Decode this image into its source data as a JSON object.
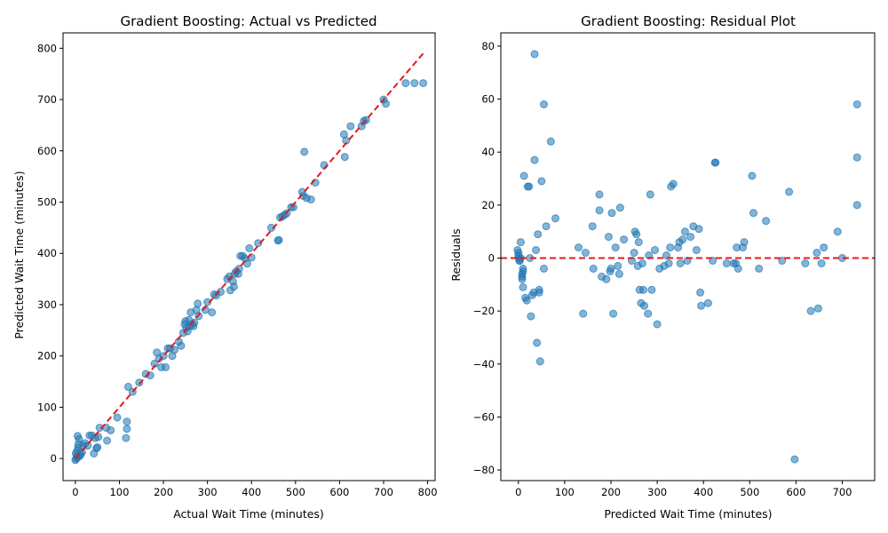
{
  "chart_data": [
    {
      "type": "scatter",
      "title": "Gradient Boosting: Actual vs Predicted",
      "xlabel": "Actual Wait Time (minutes)",
      "ylabel": "Predicted Wait Time (minutes)",
      "xlim": [
        -28,
        817
      ],
      "ylim": [
        -43,
        830
      ],
      "xticks": [
        0,
        100,
        200,
        300,
        400,
        500,
        600,
        700,
        800
      ],
      "yticks": [
        0,
        100,
        200,
        300,
        400,
        500,
        600,
        700,
        800
      ],
      "reference_line": {
        "style": "dashed",
        "color": "#e31a1c",
        "from": [
          0,
          0
        ],
        "to": [
          790,
          790
        ]
      },
      "point_color": "#1f77b4",
      "points": [
        [
          0,
          -3
        ],
        [
          2,
          0
        ],
        [
          3,
          5
        ],
        [
          1,
          10
        ],
        [
          4,
          15
        ],
        [
          5,
          2
        ],
        [
          6,
          22
        ],
        [
          7,
          28
        ],
        [
          5,
          44
        ],
        [
          8,
          38
        ],
        [
          10,
          5
        ],
        [
          12,
          8
        ],
        [
          15,
          12
        ],
        [
          18,
          25
        ],
        [
          22,
          30
        ],
        [
          28,
          25
        ],
        [
          32,
          45
        ],
        [
          38,
          45
        ],
        [
          42,
          10
        ],
        [
          45,
          40
        ],
        [
          48,
          20
        ],
        [
          50,
          22
        ],
        [
          52,
          42
        ],
        [
          55,
          60
        ],
        [
          70,
          60
        ],
        [
          72,
          35
        ],
        [
          80,
          55
        ],
        [
          95,
          80
        ],
        [
          115,
          40
        ],
        [
          117,
          58
        ],
        [
          117,
          72
        ],
        [
          120,
          140
        ],
        [
          130,
          130
        ],
        [
          145,
          148
        ],
        [
          160,
          165
        ],
        [
          170,
          162
        ],
        [
          180,
          185
        ],
        [
          185,
          207
        ],
        [
          190,
          195
        ],
        [
          195,
          178
        ],
        [
          200,
          200
        ],
        [
          205,
          178
        ],
        [
          210,
          215
        ],
        [
          215,
          215
        ],
        [
          220,
          200
        ],
        [
          225,
          212
        ],
        [
          235,
          228
        ],
        [
          240,
          220
        ],
        [
          245,
          245
        ],
        [
          248,
          262
        ],
        [
          250,
          268
        ],
        [
          252,
          255
        ],
        [
          255,
          248
        ],
        [
          258,
          270
        ],
        [
          260,
          258
        ],
        [
          262,
          285
        ],
        [
          265,
          262
        ],
        [
          268,
          258
        ],
        [
          270,
          265
        ],
        [
          275,
          290
        ],
        [
          278,
          302
        ],
        [
          280,
          278
        ],
        [
          295,
          290
        ],
        [
          300,
          305
        ],
        [
          310,
          285
        ],
        [
          315,
          320
        ],
        [
          320,
          318
        ],
        [
          330,
          325
        ],
        [
          345,
          350
        ],
        [
          350,
          355
        ],
        [
          352,
          328
        ],
        [
          358,
          345
        ],
        [
          360,
          335
        ],
        [
          362,
          360
        ],
        [
          365,
          365
        ],
        [
          370,
          360
        ],
        [
          372,
          370
        ],
        [
          375,
          395
        ],
        [
          380,
          395
        ],
        [
          385,
          390
        ],
        [
          390,
          380
        ],
        [
          395,
          410
        ],
        [
          400,
          392
        ],
        [
          415,
          420
        ],
        [
          445,
          450
        ],
        [
          460,
          425
        ],
        [
          462,
          426
        ],
        [
          465,
          470
        ],
        [
          470,
          472
        ],
        [
          475,
          475
        ],
        [
          480,
          478
        ],
        [
          490,
          490
        ],
        [
          495,
          490
        ],
        [
          515,
          520
        ],
        [
          518,
          512
        ],
        [
          520,
          598
        ],
        [
          525,
          508
        ],
        [
          535,
          505
        ],
        [
          545,
          538
        ],
        [
          565,
          572
        ],
        [
          610,
          632
        ],
        [
          612,
          588
        ],
        [
          615,
          620
        ],
        [
          625,
          648
        ],
        [
          650,
          648
        ],
        [
          655,
          658
        ],
        [
          660,
          660
        ],
        [
          700,
          700
        ],
        [
          705,
          692
        ],
        [
          750,
          732
        ],
        [
          770,
          732
        ],
        [
          790,
          732
        ]
      ]
    },
    {
      "type": "scatter",
      "title": "Gradient Boosting: Residual Plot",
      "xlabel": "Predicted Wait Time (minutes)",
      "ylabel": "Residuals",
      "xlim": [
        -38,
        770
      ],
      "ylim": [
        -84,
        85
      ],
      "xticks": [
        0,
        100,
        200,
        300,
        400,
        500,
        600,
        700
      ],
      "yticks": [
        -80,
        -60,
        -40,
        -20,
        0,
        20,
        40,
        60,
        80
      ],
      "reference_line": {
        "style": "dashed",
        "color": "#e31a1c",
        "y": 0
      },
      "point_color": "#1f77b4",
      "points": [
        [
          -2,
          3
        ],
        [
          0,
          2
        ],
        [
          0,
          1
        ],
        [
          1,
          0
        ],
        [
          2,
          -1
        ],
        [
          3,
          -1
        ],
        [
          5,
          6
        ],
        [
          5,
          0
        ],
        [
          8,
          -6
        ],
        [
          8,
          -7
        ],
        [
          8,
          -8
        ],
        [
          10,
          -4
        ],
        [
          10,
          -5
        ],
        [
          10,
          -11
        ],
        [
          12,
          31
        ],
        [
          15,
          -15
        ],
        [
          18,
          -16
        ],
        [
          20,
          27
        ],
        [
          23,
          27
        ],
        [
          25,
          0
        ],
        [
          27,
          -22
        ],
        [
          30,
          -14
        ],
        [
          33,
          -13
        ],
        [
          35,
          77
        ],
        [
          35,
          37
        ],
        [
          38,
          3
        ],
        [
          40,
          -32
        ],
        [
          42,
          9
        ],
        [
          45,
          -12
        ],
        [
          45,
          -13
        ],
        [
          47,
          -39
        ],
        [
          50,
          29
        ],
        [
          55,
          58
        ],
        [
          55,
          -4
        ],
        [
          60,
          12
        ],
        [
          70,
          44
        ],
        [
          80,
          15
        ],
        [
          130,
          4
        ],
        [
          140,
          -21
        ],
        [
          145,
          2
        ],
        [
          160,
          12
        ],
        [
          162,
          -4
        ],
        [
          175,
          24
        ],
        [
          175,
          18
        ],
        [
          180,
          -7
        ],
        [
          190,
          -8
        ],
        [
          195,
          8
        ],
        [
          198,
          -5
        ],
        [
          200,
          -4
        ],
        [
          202,
          17
        ],
        [
          205,
          -21
        ],
        [
          210,
          4
        ],
        [
          215,
          -3
        ],
        [
          218,
          -6
        ],
        [
          220,
          19
        ],
        [
          228,
          7
        ],
        [
          245,
          -1
        ],
        [
          250,
          2
        ],
        [
          252,
          10
        ],
        [
          255,
          9
        ],
        [
          258,
          -3
        ],
        [
          260,
          6
        ],
        [
          262,
          -12
        ],
        [
          265,
          -17
        ],
        [
          268,
          -2
        ],
        [
          270,
          -12
        ],
        [
          272,
          -18
        ],
        [
          280,
          -21
        ],
        [
          282,
          1
        ],
        [
          285,
          24
        ],
        [
          288,
          -12
        ],
        [
          295,
          3
        ],
        [
          300,
          -25
        ],
        [
          305,
          -4
        ],
        [
          315,
          -3
        ],
        [
          320,
          1
        ],
        [
          325,
          -2
        ],
        [
          328,
          4
        ],
        [
          330,
          27
        ],
        [
          335,
          28
        ],
        [
          345,
          4
        ],
        [
          348,
          6
        ],
        [
          350,
          -2
        ],
        [
          355,
          7
        ],
        [
          360,
          10
        ],
        [
          365,
          -1
        ],
        [
          372,
          8
        ],
        [
          378,
          12
        ],
        [
          385,
          3
        ],
        [
          390,
          11
        ],
        [
          393,
          -13
        ],
        [
          395,
          -18
        ],
        [
          410,
          -17
        ],
        [
          420,
          -1
        ],
        [
          425,
          36
        ],
        [
          426,
          36
        ],
        [
          450,
          -2
        ],
        [
          465,
          -2
        ],
        [
          470,
          -2
        ],
        [
          472,
          4
        ],
        [
          475,
          -4
        ],
        [
          485,
          4
        ],
        [
          488,
          6
        ],
        [
          505,
          31
        ],
        [
          508,
          17
        ],
        [
          520,
          -4
        ],
        [
          535,
          14
        ],
        [
          570,
          -1
        ],
        [
          585,
          25
        ],
        [
          597,
          -76
        ],
        [
          620,
          -2
        ],
        [
          632,
          -20
        ],
        [
          645,
          2
        ],
        [
          648,
          -19
        ],
        [
          655,
          -2
        ],
        [
          660,
          4
        ],
        [
          690,
          10
        ],
        [
          700,
          0
        ],
        [
          732,
          58
        ],
        [
          732,
          38
        ],
        [
          732,
          20
        ]
      ]
    }
  ]
}
